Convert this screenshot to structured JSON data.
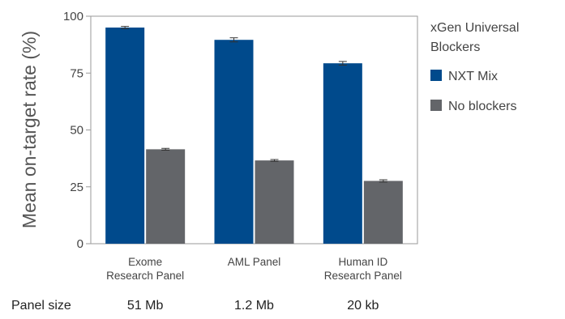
{
  "chart_data": {
    "type": "bar",
    "categories": [
      [
        "Exome",
        "Research Panel"
      ],
      [
        "AML Panel"
      ],
      [
        "Human ID",
        "Research Panel"
      ]
    ],
    "series": [
      {
        "name": "NXT Mix",
        "color": "#004a8c",
        "values": [
          95.0,
          89.6,
          79.3
        ],
        "errors": [
          0.5,
          0.9,
          0.8
        ]
      },
      {
        "name": "No blockers",
        "color": "#636569",
        "values": [
          41.5,
          36.6,
          27.6
        ],
        "errors": [
          0.4,
          0.4,
          0.5
        ]
      }
    ],
    "ylabel": "Mean on-target rate (%)",
    "ylim": [
      0,
      100
    ],
    "yticks": [
      0,
      25,
      50,
      75,
      100
    ],
    "grid": false,
    "legend": {
      "title": [
        "xGen Universal",
        "Blockers"
      ],
      "placement": "right"
    }
  },
  "panel_size": {
    "label": "Panel size",
    "values": [
      "51 Mb",
      "1.2 Mb",
      "20 kb"
    ]
  }
}
